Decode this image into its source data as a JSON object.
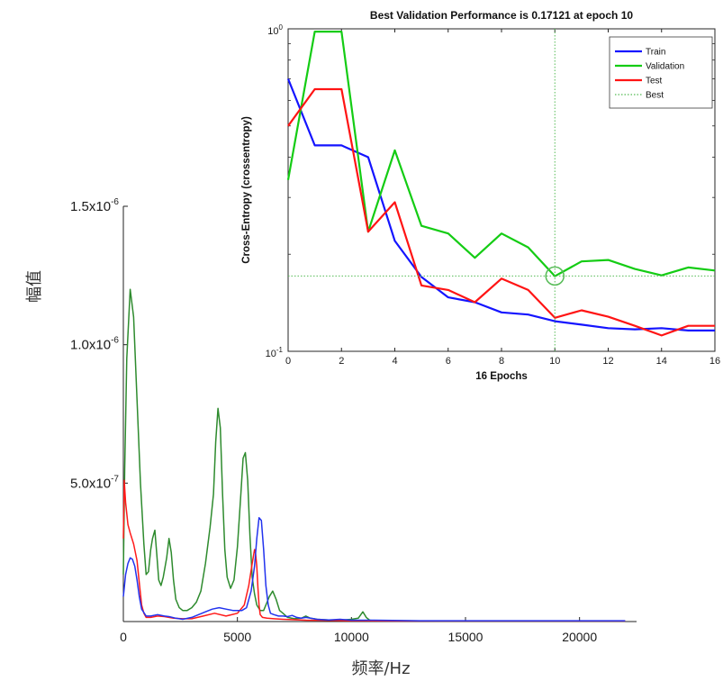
{
  "colors": {
    "spectrum_green": "#2e8b2e",
    "spectrum_red": "#ff1a1a",
    "spectrum_blue": "#2233ee",
    "train": "#1414ff",
    "validation": "#14cc14",
    "test": "#ff1414",
    "best": "#55bb55"
  },
  "chart_data": [
    {
      "type": "line",
      "xlabel": "频率/Hz",
      "ylabel": "幅值",
      "xlim": [
        0,
        22500
      ],
      "ylim": [
        0,
        1.5e-06
      ],
      "x_ticks": [
        "0",
        "5000",
        "10000",
        "15000",
        "20000"
      ],
      "x_tick_values": [
        0,
        5000,
        10000,
        15000,
        20000
      ],
      "y_ticks": [
        {
          "value": 5e-07,
          "mantissa": "5.0x10",
          "exp": "-7"
        },
        {
          "value": 1e-06,
          "mantissa": "1.0x10",
          "exp": "-6"
        },
        {
          "value": 1.5e-06,
          "mantissa": "1.5x10",
          "exp": "-6"
        }
      ],
      "series": [
        {
          "color": "spectrum_green",
          "x": [
            0,
            60,
            150,
            300,
            450,
            600,
            750,
            900,
            1000,
            1100,
            1200,
            1280,
            1380,
            1470,
            1550,
            1650,
            1750,
            1900,
            2000,
            2100,
            2200,
            2300,
            2450,
            2600,
            2800,
            3000,
            3200,
            3400,
            3600,
            3800,
            3950,
            4050,
            4150,
            4250,
            4350,
            4450,
            4550,
            4700,
            4850,
            5000,
            5150,
            5250,
            5350,
            5450,
            5550,
            5650,
            5750,
            5850,
            6000,
            6150,
            6300,
            6400,
            6550,
            6700,
            6850,
            7000,
            7200,
            7500,
            7800,
            8000,
            8200,
            8500,
            9000,
            9500,
            10000,
            10300,
            10500,
            10650,
            10800,
            11000,
            12000,
            14000,
            16000,
            18000,
            20000,
            22000
          ],
          "y": [
            1.7e-07,
            5.5e-07,
            9.5e-07,
            1.2e-06,
            1.1e-06,
            8e-07,
            5e-07,
            2.8e-07,
            1.7e-07,
            1.8e-07,
            2.6e-07,
            3e-07,
            3.3e-07,
            2.4e-07,
            1.5e-07,
            1.3e-07,
            1.6e-07,
            2.3e-07,
            3e-07,
            2.5e-07,
            1.5e-07,
            8e-08,
            5e-08,
            4e-08,
            4e-08,
            5e-08,
            7e-08,
            1.1e-07,
            2.1e-07,
            3.4e-07,
            4.6e-07,
            6.5e-07,
            7.7e-07,
            7e-07,
            4.6e-07,
            2.6e-07,
            1.6e-07,
            1.2e-07,
            1.5e-07,
            2.7e-07,
            4.6e-07,
            5.9e-07,
            6.1e-07,
            5.1e-07,
            3.1e-07,
            1.6e-07,
            1e-07,
            6e-08,
            4e-08,
            4e-08,
            7e-08,
            9e-08,
            1.1e-07,
            8e-08,
            4e-08,
            3e-08,
            1.5e-08,
            1e-08,
            1.2e-08,
            2e-08,
            1.2e-08,
            8e-09,
            6e-09,
            5e-09,
            8e-09,
            1.2e-08,
            3.5e-08,
            1.5e-08,
            5e-09,
            3e-09,
            3e-09,
            2e-09,
            2e-09,
            2e-09,
            2e-09,
            2e-09
          ]
        },
        {
          "color": "spectrum_red",
          "x": [
            0,
            40,
            100,
            200,
            300,
            450,
            600,
            700,
            800,
            900,
            1000,
            1200,
            1500,
            1800,
            2200,
            2600,
            3000,
            3500,
            4000,
            4500,
            5000,
            5300,
            5500,
            5650,
            5750,
            5800,
            5850,
            5900,
            5950,
            6000,
            6100,
            6300,
            6600,
            7000,
            8000,
            9000,
            10000,
            12000,
            16000,
            22000
          ],
          "y": [
            3e-07,
            5.1e-07,
            4.3e-07,
            3.5e-07,
            3.2e-07,
            2.8e-07,
            2.2e-07,
            1.4e-07,
            6e-08,
            3e-08,
            1.5e-08,
            1.5e-08,
            2e-08,
            1.8e-08,
            1.2e-08,
            1e-08,
            1e-08,
            2e-08,
            3e-08,
            2e-08,
            3e-08,
            6e-08,
            1.3e-07,
            2.1e-07,
            2.6e-07,
            2.45e-07,
            2e-07,
            1.2e-07,
            6e-08,
            2.5e-08,
            1.5e-08,
            1.2e-08,
            1e-08,
            8e-09,
            5e-09,
            4e-09,
            3e-09,
            2e-09,
            2e-09,
            2e-09
          ]
        },
        {
          "color": "spectrum_blue",
          "x": [
            0,
            100,
            200,
            300,
            400,
            500,
            600,
            700,
            800,
            1000,
            1200,
            1500,
            1800,
            2000,
            2300,
            2600,
            3000,
            3300,
            3600,
            3900,
            4200,
            4500,
            4800,
            5000,
            5200,
            5400,
            5600,
            5750,
            5850,
            5950,
            6050,
            6150,
            6250,
            6350,
            6450,
            6600,
            6800,
            7000,
            7200,
            7400,
            7600,
            7800,
            8000,
            8500,
            9000,
            9500,
            10000,
            11000,
            13000,
            16000,
            19000,
            22000
          ],
          "y": [
            9e-08,
            1.7e-07,
            2.1e-07,
            2.3e-07,
            2.25e-07,
            2e-07,
            1.5e-07,
            9e-08,
            4.5e-08,
            2e-08,
            2e-08,
            2.5e-08,
            2e-08,
            1.8e-08,
            1.2e-08,
            8e-09,
            1.5e-08,
            2.5e-08,
            3.5e-08,
            4.5e-08,
            5e-08,
            4.5e-08,
            4e-08,
            4e-08,
            4e-08,
            5e-08,
            1.1e-07,
            2e-07,
            3e-07,
            3.75e-07,
            3.65e-07,
            2.6e-07,
            1.3e-07,
            6e-08,
            3e-08,
            2.5e-08,
            2e-08,
            2e-08,
            1.8e-08,
            2.2e-08,
            1.5e-08,
            1.2e-08,
            1.5e-08,
            8e-09,
            6e-09,
            8e-09,
            5e-09,
            5e-09,
            3e-09,
            3e-09,
            3e-09,
            3e-09
          ]
        }
      ]
    },
    {
      "type": "line",
      "title": "Best Validation Performance is 0.17121 at epoch 10",
      "xlabel": "16 Epochs",
      "ylabel": "Cross-Entropy  (crossentropy)",
      "xlim": [
        0,
        16
      ],
      "ylim": [
        0.1,
        1.0
      ],
      "yscale": "log",
      "x_ticks": [
        0,
        2,
        4,
        6,
        8,
        10,
        12,
        14,
        16
      ],
      "y_ticks": [
        {
          "value": 0.1,
          "mantissa": "10",
          "exp": "-1"
        },
        {
          "value": 1.0,
          "mantissa": "10",
          "exp": "0"
        }
      ],
      "legend_position": "top-right",
      "best": {
        "epoch": 10,
        "value": 0.17121
      },
      "series": [
        {
          "name": "Train",
          "color": "train",
          "x": [
            0,
            1,
            2,
            3,
            4,
            5,
            6,
            7,
            8,
            9,
            10,
            11,
            12,
            13,
            14,
            15,
            16
          ],
          "y": [
            0.7,
            0.435,
            0.435,
            0.4,
            0.22,
            0.17,
            0.147,
            0.142,
            0.132,
            0.13,
            0.124,
            0.121,
            0.118,
            0.117,
            0.118,
            0.116,
            0.116
          ]
        },
        {
          "name": "Validation",
          "color": "validation",
          "x": [
            0,
            1,
            2,
            3,
            4,
            5,
            6,
            7,
            8,
            9,
            10,
            11,
            12,
            13,
            14,
            15,
            16
          ],
          "y": [
            0.34,
            0.98,
            0.98,
            0.235,
            0.42,
            0.245,
            0.232,
            0.195,
            0.232,
            0.21,
            0.171,
            0.19,
            0.192,
            0.18,
            0.172,
            0.182,
            0.178
          ]
        },
        {
          "name": "Test",
          "color": "test",
          "x": [
            0,
            1,
            2,
            3,
            4,
            5,
            6,
            7,
            8,
            9,
            10,
            11,
            12,
            13,
            14,
            15,
            16
          ],
          "y": [
            0.5,
            0.65,
            0.65,
            0.235,
            0.29,
            0.16,
            0.155,
            0.142,
            0.168,
            0.155,
            0.127,
            0.134,
            0.128,
            0.12,
            0.112,
            0.12,
            0.12
          ]
        },
        {
          "name": "Best",
          "style": "dotted",
          "color": "best"
        }
      ]
    }
  ]
}
